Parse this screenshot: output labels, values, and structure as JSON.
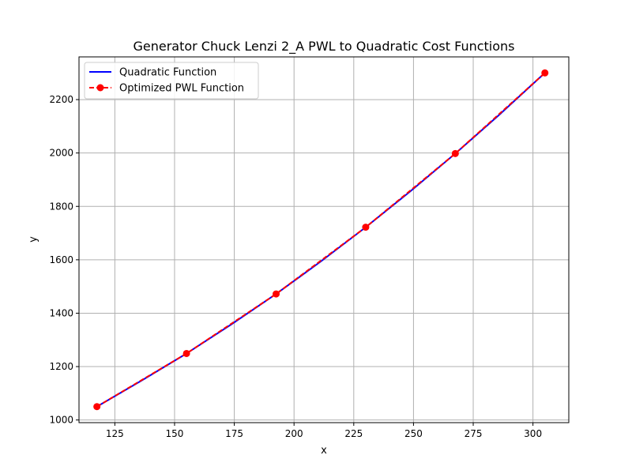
{
  "chart_data": {
    "type": "line",
    "title": "Generator Chuck Lenzi 2_A PWL to Quadratic Cost Functions",
    "xlabel": "x",
    "ylabel": "y",
    "xlim": [
      110,
      315
    ],
    "ylim": [
      990,
      2360
    ],
    "xticks": [
      125,
      150,
      175,
      200,
      225,
      250,
      275,
      300
    ],
    "yticks": [
      1000,
      1200,
      1400,
      1600,
      1800,
      2000,
      2200
    ],
    "grid": true,
    "legend_position": "top-left",
    "series": [
      {
        "name": "Quadratic Function",
        "style": "solid",
        "color": "#0000ff",
        "x": [
          117.5,
          136.25,
          155,
          173.75,
          192.5,
          211.25,
          230,
          248.75,
          267.5,
          286.25,
          305
        ],
        "values": [
          1050,
          1148,
          1249,
          1358,
          1472,
          1594,
          1722,
          1857,
          1998,
          2146,
          2300
        ]
      },
      {
        "name": "Optimized PWL Function",
        "style": "dashed",
        "color": "#ff0000",
        "marker": "circle",
        "x": [
          117.5,
          155,
          192.5,
          230,
          267.5,
          305
        ],
        "values": [
          1050,
          1249,
          1472,
          1722,
          1998,
          2300
        ]
      }
    ]
  }
}
